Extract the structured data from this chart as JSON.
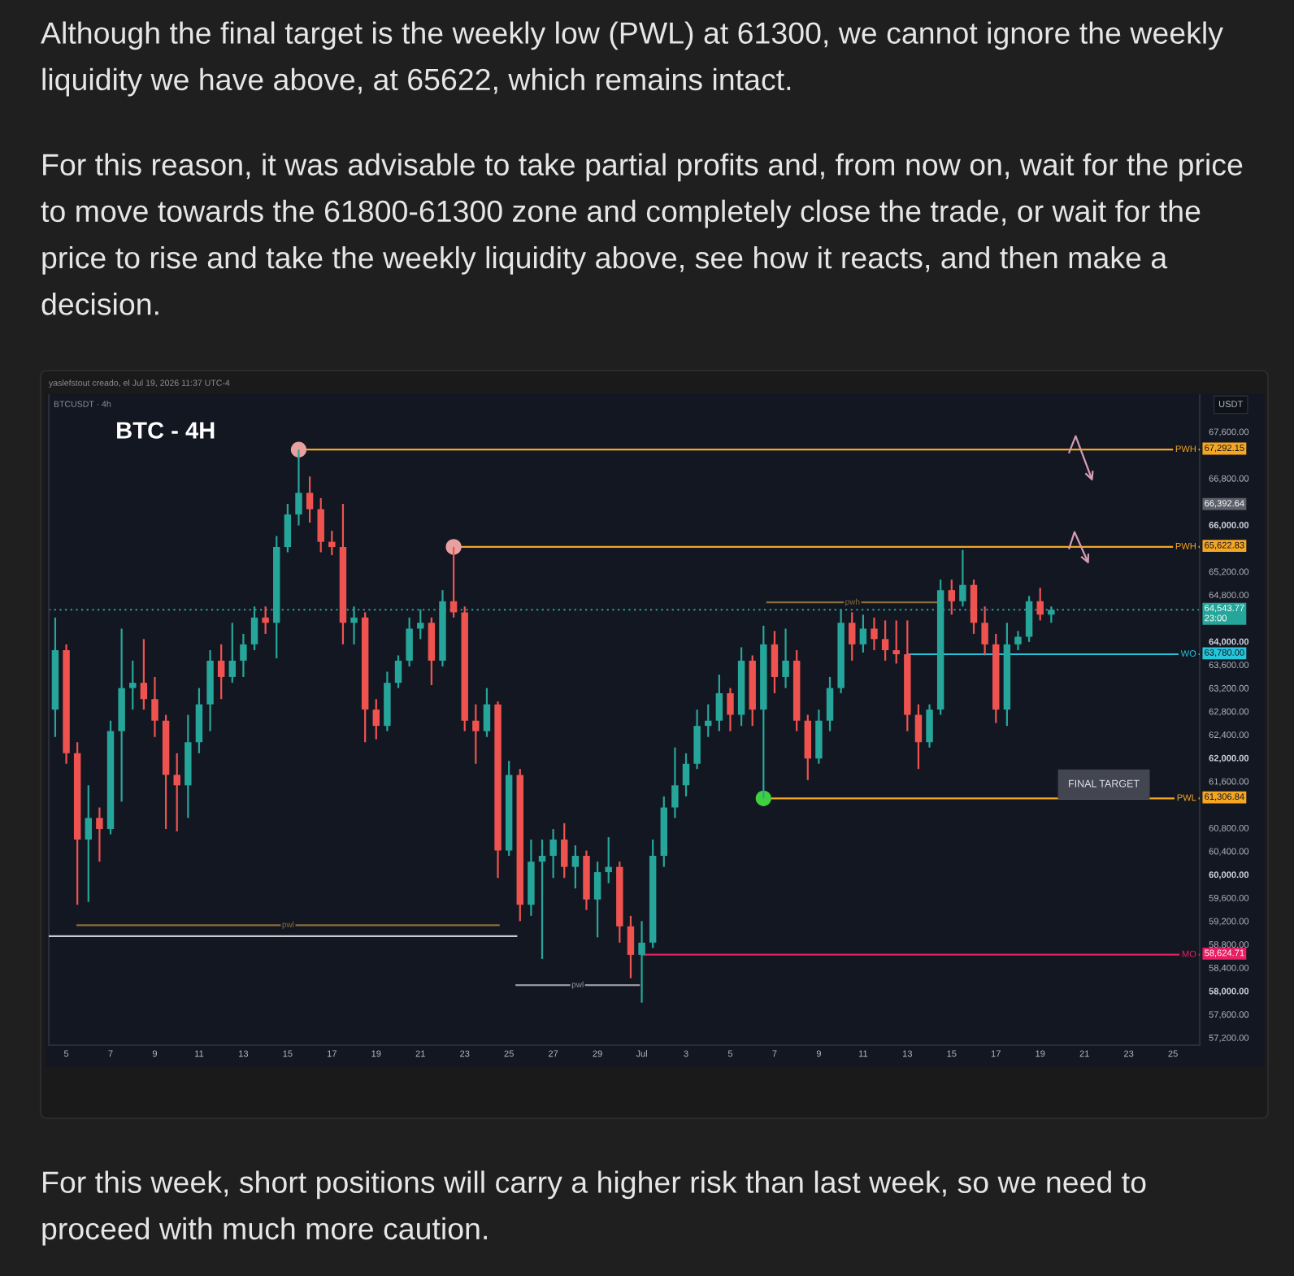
{
  "chart_data": {
    "type": "candlestick",
    "title": "BTC - 4H",
    "subtitle": "BTCUSDT · 4h",
    "ylabel": "USDT",
    "legend": "right",
    "x": [
      "2026-06-04T12:00",
      "2026-06-05T00:00",
      "2026-06-05T12:00",
      "2026-06-06T00:00",
      "2026-06-06T12:00",
      "2026-06-07T00:00",
      "2026-06-07T12:00",
      "2026-06-08T00:00",
      "2026-06-08T12:00",
      "2026-06-09T00:00",
      "2026-06-09T12:00",
      "2026-06-10T00:00",
      "2026-06-10T12:00",
      "2026-06-11T00:00",
      "2026-06-11T12:00",
      "2026-06-12T00:00",
      "2026-06-12T12:00",
      "2026-06-13T00:00",
      "2026-06-13T12:00",
      "2026-06-14T00:00",
      "2026-06-14T12:00",
      "2026-06-15T00:00",
      "2026-06-15T12:00",
      "2026-06-16T00:00",
      "2026-06-16T12:00",
      "2026-06-17T00:00",
      "2026-06-17T12:00",
      "2026-06-18T00:00",
      "2026-06-18T12:00",
      "2026-06-19T00:00",
      "2026-06-19T12:00",
      "2026-06-20T00:00",
      "2026-06-20T12:00",
      "2026-06-21T00:00",
      "2026-06-21T12:00",
      "2026-06-22T00:00",
      "2026-06-22T12:00",
      "2026-06-23T00:00",
      "2026-06-23T12:00",
      "2026-06-24T00:00",
      "2026-06-24T12:00",
      "2026-06-25T00:00",
      "2026-06-25T12:00",
      "2026-06-26T00:00",
      "2026-06-26T12:00",
      "2026-06-27T00:00",
      "2026-06-27T12:00",
      "2026-06-28T00:00",
      "2026-06-28T12:00",
      "2026-06-29T00:00",
      "2026-06-29T12:00",
      "2026-06-30T00:00",
      "2026-06-30T12:00",
      "2026-07-01T00:00",
      "2026-07-01T12:00",
      "2026-07-02T00:00",
      "2026-07-02T12:00",
      "2026-07-03T00:00",
      "2026-07-03T12:00",
      "2026-07-04T00:00",
      "2026-07-04T12:00",
      "2026-07-05T00:00",
      "2026-07-05T12:00",
      "2026-07-06T00:00",
      "2026-07-06T12:00",
      "2026-07-07T00:00",
      "2026-07-07T12:00",
      "2026-07-08T00:00",
      "2026-07-08T12:00",
      "2026-07-09T00:00",
      "2026-07-09T12:00",
      "2026-07-10T00:00",
      "2026-07-10T12:00",
      "2026-07-11T00:00",
      "2026-07-11T12:00",
      "2026-07-12T00:00",
      "2026-07-12T12:00",
      "2026-07-13T00:00",
      "2026-07-13T12:00",
      "2026-07-14T00:00",
      "2026-07-14T12:00",
      "2026-07-15T00:00",
      "2026-07-15T12:00",
      "2026-07-16T00:00",
      "2026-07-16T12:00",
      "2026-07-17T00:00",
      "2026-07-17T12:00",
      "2026-07-18T00:00",
      "2026-07-18T12:00",
      "2026-07-19T00:00",
      "2026-07-19T12:00"
    ],
    "ohlc": [
      [
        62830,
        64410,
        62360,
        63850
      ],
      [
        63850,
        63950,
        61900,
        62080
      ],
      [
        62080,
        62270,
        59480,
        60600
      ],
      [
        60600,
        61530,
        59530,
        60970
      ],
      [
        60970,
        61150,
        60220,
        60780
      ],
      [
        60780,
        62640,
        60690,
        62460
      ],
      [
        62460,
        64220,
        61250,
        63200
      ],
      [
        63200,
        63670,
        62830,
        63290
      ],
      [
        63290,
        64040,
        62830,
        63010
      ],
      [
        63010,
        63390,
        62360,
        62640
      ],
      [
        62640,
        62740,
        60780,
        61710
      ],
      [
        61710,
        62080,
        60740,
        61530
      ],
      [
        61530,
        62740,
        60970,
        62270
      ],
      [
        62270,
        63200,
        62080,
        62920
      ],
      [
        62920,
        63850,
        62460,
        63670
      ],
      [
        63670,
        63950,
        63010,
        63390
      ],
      [
        63390,
        64320,
        63290,
        63670
      ],
      [
        63670,
        64130,
        63390,
        63950
      ],
      [
        63950,
        64600,
        63850,
        64410
      ],
      [
        64410,
        64600,
        64130,
        64320
      ],
      [
        64320,
        65810,
        63710,
        65620
      ],
      [
        65620,
        66360,
        65530,
        66180
      ],
      [
        66180,
        67292.15,
        65990,
        66550
      ],
      [
        66550,
        66830,
        66040,
        66270
      ],
      [
        66270,
        66460,
        65530,
        65710
      ],
      [
        65710,
        65900,
        65480,
        65620
      ],
      [
        65620,
        66360,
        63950,
        64320
      ],
      [
        64320,
        64600,
        63950,
        64410
      ],
      [
        64410,
        64500,
        62270,
        62830
      ],
      [
        62830,
        63010,
        62320,
        62550
      ],
      [
        62550,
        63480,
        62460,
        63290
      ],
      [
        63290,
        63760,
        63200,
        63670
      ],
      [
        63670,
        64410,
        63570,
        64220
      ],
      [
        64220,
        64550,
        64040,
        64320
      ],
      [
        64320,
        64410,
        63250,
        63670
      ],
      [
        63670,
        64880,
        63570,
        64690
      ],
      [
        64690,
        65622.83,
        64410,
        64500
      ],
      [
        64500,
        64600,
        62460,
        62640
      ],
      [
        62640,
        62920,
        61900,
        62460
      ],
      [
        62460,
        63200,
        62360,
        62920
      ],
      [
        62920,
        62970,
        59940,
        60410
      ],
      [
        60410,
        61950,
        60320,
        61710
      ],
      [
        61710,
        61810,
        59200,
        59480
      ],
      [
        59480,
        60600,
        59290,
        60220
      ],
      [
        60220,
        60600,
        58550,
        60320
      ],
      [
        60320,
        60780,
        59940,
        60600
      ],
      [
        60600,
        60880,
        59940,
        60130
      ],
      [
        60130,
        60500,
        59760,
        60320
      ],
      [
        60320,
        60410,
        59390,
        59570
      ],
      [
        59570,
        60220,
        58920,
        60040
      ],
      [
        60040,
        60640,
        59850,
        60130
      ],
      [
        60130,
        60220,
        58830,
        59110
      ],
      [
        59110,
        59290,
        58220,
        58620
      ],
      [
        58620,
        59200,
        57800,
        58830
      ],
      [
        58830,
        60600,
        58740,
        60320
      ],
      [
        60320,
        61340,
        60130,
        61150
      ],
      [
        61150,
        62180,
        60970,
        61530
      ],
      [
        61530,
        62080,
        61340,
        61900
      ],
      [
        61900,
        62830,
        61810,
        62550
      ],
      [
        62550,
        62920,
        62360,
        62640
      ],
      [
        62640,
        63430,
        62460,
        63110
      ],
      [
        63110,
        63200,
        62460,
        62740
      ],
      [
        62740,
        63900,
        62550,
        63670
      ],
      [
        63670,
        63760,
        62550,
        62830
      ],
      [
        62830,
        64270,
        61306.84,
        63950
      ],
      [
        63950,
        64180,
        63110,
        63390
      ],
      [
        63390,
        64220,
        63200,
        63670
      ],
      [
        63670,
        63850,
        62460,
        62640
      ],
      [
        62640,
        62740,
        61620,
        61990
      ],
      [
        61990,
        62830,
        61900,
        62640
      ],
      [
        62640,
        63390,
        62460,
        63200
      ],
      [
        63200,
        64550,
        63110,
        64320
      ],
      [
        64320,
        64500,
        63670,
        63950
      ],
      [
        63950,
        64460,
        63810,
        64220
      ],
      [
        64220,
        64410,
        63850,
        64040
      ],
      [
        64040,
        64360,
        63670,
        63850
      ],
      [
        63850,
        64360,
        63620,
        63780
      ],
      [
        63780,
        64360,
        62460,
        62740
      ],
      [
        62740,
        62920,
        61810,
        62270
      ],
      [
        62270,
        62920,
        62180,
        62830
      ],
      [
        62830,
        65060,
        62740,
        64880
      ],
      [
        64880,
        65060,
        64460,
        64690
      ],
      [
        64690,
        65570,
        64600,
        64970
      ],
      [
        64970,
        65060,
        64130,
        64320
      ],
      [
        64320,
        64600,
        63760,
        63950
      ],
      [
        63950,
        64130,
        62600,
        62830
      ],
      [
        62830,
        64320,
        62550,
        63950
      ],
      [
        63950,
        64180,
        63850,
        64080
      ],
      [
        64080,
        64780,
        63990,
        64690
      ],
      [
        64690,
        64920,
        64360,
        64460
      ],
      [
        64460,
        64600,
        64320,
        64543.77
      ]
    ],
    "colors": [
      "#26a69a",
      "#ef5350",
      "#ef5350",
      "#26a69a",
      "#ef5350",
      "#26a69a",
      "#26a69a",
      "#26a69a",
      "#ef5350",
      "#ef5350",
      "#ef5350",
      "#ef5350",
      "#26a69a",
      "#26a69a",
      "#26a69a",
      "#ef5350",
      "#26a69a",
      "#26a69a",
      "#26a69a",
      "#ef5350",
      "#26a69a",
      "#26a69a",
      "#26a69a",
      "#ef5350",
      "#ef5350",
      "#ef5350",
      "#ef5350",
      "#26a69a",
      "#ef5350",
      "#ef5350",
      "#26a69a",
      "#26a69a",
      "#26a69a",
      "#26a69a",
      "#ef5350",
      "#26a69a",
      "#ef5350",
      "#ef5350",
      "#ef5350",
      "#26a69a",
      "#ef5350",
      "#26a69a",
      "#ef5350",
      "#26a69a",
      "#26a69a",
      "#26a69a",
      "#ef5350",
      "#26a69a",
      "#ef5350",
      "#26a69a",
      "#26a69a",
      "#ef5350",
      "#ef5350",
      "#26a69a",
      "#26a69a",
      "#26a69a",
      "#26a69a",
      "#26a69a",
      "#26a69a",
      "#26a69a",
      "#26a69a",
      "#ef5350",
      "#26a69a",
      "#ef5350",
      "#26a69a",
      "#ef5350",
      "#26a69a",
      "#ef5350",
      "#ef5350",
      "#26a69a",
      "#26a69a",
      "#26a69a",
      "#ef5350",
      "#26a69a",
      "#ef5350",
      "#ef5350",
      "#ef5350",
      "#ef5350",
      "#ef5350",
      "#26a69a",
      "#26a69a",
      "#ef5350",
      "#26a69a",
      "#ef5350",
      "#ef5350",
      "#ef5350",
      "#26a69a",
      "#26a69a",
      "#26a69a",
      "#ef5350",
      "#26a69a"
    ],
    "series": [
      {
        "type": "line",
        "name": "PWH",
        "color": "#f5a623",
        "x": [
          "2026-06-15T12:00",
          "2026-07-26T05:00"
        ],
        "values": [
          67292.15,
          67292.15
        ],
        "value_labels": [
          null,
          "67,292.15"
        ]
      },
      {
        "type": "line",
        "name": "PWH",
        "color": "#f5a623",
        "x": [
          "2026-06-22T12:00",
          "2026-07-26T05:00"
        ],
        "values": [
          65622.83,
          65622.83
        ],
        "value_labels": [
          null,
          "65,622.83"
        ]
      },
      {
        "type": "line",
        "name": "WO",
        "color": "#26c6da",
        "x": [
          "2026-07-13T00:00",
          "2026-07-26T05:00"
        ],
        "values": [
          63780,
          63780
        ],
        "value_labels": [
          null,
          "63,780.00"
        ]
      },
      {
        "type": "line",
        "name": "PWL",
        "color": "#f5a623",
        "x": [
          "2026-07-06T12:00",
          "2026-07-26T05:00"
        ],
        "values": [
          61306.84,
          61306.84
        ],
        "value_labels": [
          null,
          "61,306.84"
        ]
      },
      {
        "type": "line",
        "name": "MO",
        "color": "#e91e63",
        "x": [
          "2026-07-01T00:00",
          "2026-07-26T05:00"
        ],
        "values": [
          58624.71,
          58624.71
        ],
        "value_labels": [
          null,
          "58,624.71"
        ]
      },
      {
        "type": "line",
        "name": "pwh",
        "color": "#8a6d3b",
        "x": [
          "2026-07-06T16:00",
          "2026-07-14T09:00"
        ],
        "values": [
          64670,
          64670
        ]
      },
      {
        "type": "line",
        "name": "pwl",
        "color": "#8a6d3b",
        "x": [
          "2026-06-05T12:00",
          "2026-06-24T13:00"
        ],
        "values": [
          59130,
          59130
        ]
      },
      {
        "type": "line",
        "color": "#c8cbd2",
        "x": [
          "2026-06-04T05:00",
          "2026-06-25T08:00"
        ],
        "values": [
          58940,
          58940
        ]
      },
      {
        "type": "line",
        "name": "pwl",
        "color": "#9598a1",
        "x": [
          "2026-06-25T08:00",
          "2026-06-30T21:00"
        ],
        "values": [
          58100,
          58100
        ]
      },
      {
        "type": "scatter",
        "color": "#e8a0a0",
        "marker": "circle",
        "x": [
          "2026-06-15T12:00",
          "2026-06-22T12:00"
        ],
        "values": [
          67292.15,
          65622.83
        ]
      },
      {
        "type": "scatter",
        "color": "#3fcf3f",
        "marker": "circle",
        "x": [
          "2026-07-06T12:00"
        ],
        "values": [
          61306.84
        ]
      }
    ],
    "ref_lines": [
      {
        "axis": "y",
        "value": 64543.77,
        "label": "64,543.77\n23:00",
        "color": "#26a69a",
        "line_style": "dotted"
      }
    ],
    "annotations": [
      "Although the final target is the weekly low (PWL) at 61300, we cannot ignore the weekly liquidity we have above, at 65622, which remains intact.",
      "For this reason, it was advisable to take partial profits and, from now on, wait for the price to move towards the 61800-61300 zone and completely close the trade, or wait for the price to rise and take the weekly liquidity above, see how it reacts, and then make a decision.",
      "yaslefstout creado, el Jul 19, 2026 11:37 UTC-4",
      "66,392.64",
      "FINAL TARGET",
      "For this week, short positions will carry a higher risk than last week, so we need to proceed with much more caution."
    ],
    "xlim": [
      "2026-06-04T05:00",
      "2026-07-26T05:00"
    ],
    "ylim": [
      57070,
      68230
    ],
    "xticks": [
      {
        "value": "2026-06-05",
        "label": "5"
      },
      {
        "value": "2026-06-07",
        "label": "7"
      },
      {
        "value": "2026-06-09",
        "label": "9"
      },
      {
        "value": "2026-06-11",
        "label": "11"
      },
      {
        "value": "2026-06-13",
        "label": "13"
      },
      {
        "value": "2026-06-15",
        "label": "15"
      },
      {
        "value": "2026-06-17",
        "label": "17"
      },
      {
        "value": "2026-06-19",
        "label": "19"
      },
      {
        "value": "2026-06-21",
        "label": "21"
      },
      {
        "value": "2026-06-23",
        "label": "23"
      },
      {
        "value": "2026-06-25",
        "label": "25"
      },
      {
        "value": "2026-06-27",
        "label": "27"
      },
      {
        "value": "2026-06-29",
        "label": "29"
      },
      {
        "value": "2026-07-01",
        "label": "Jul"
      },
      {
        "value": "2026-07-03",
        "label": "3"
      },
      {
        "value": "2026-07-05",
        "label": "5"
      },
      {
        "value": "2026-07-07",
        "label": "7"
      },
      {
        "value": "2026-07-09",
        "label": "9"
      },
      {
        "value": "2026-07-11",
        "label": "11"
      },
      {
        "value": "2026-07-13",
        "label": "13"
      },
      {
        "value": "2026-07-15",
        "label": "15"
      },
      {
        "value": "2026-07-17",
        "label": "17"
      },
      {
        "value": "2026-07-19",
        "label": "19"
      },
      {
        "value": "2026-07-21",
        "label": "21"
      },
      {
        "value": "2026-07-23",
        "label": "23"
      },
      {
        "value": "2026-07-25",
        "label": "25"
      }
    ],
    "yticks": [
      {
        "value": 67600,
        "label": "67,600.00"
      },
      {
        "value": 66800,
        "label": "66,800.00"
      },
      {
        "value": 66000,
        "label": "66,000.00"
      },
      {
        "value": 65200,
        "label": "65,200.00"
      },
      {
        "value": 64800,
        "label": "64,800.00"
      },
      {
        "value": 64000,
        "label": "64,000.00"
      },
      {
        "value": 63600,
        "label": "63,600.00"
      },
      {
        "value": 63200,
        "label": "63,200.00"
      },
      {
        "value": 62800,
        "label": "62,800.00"
      },
      {
        "value": 62400,
        "label": "62,400.00"
      },
      {
        "value": 62000,
        "label": "62,000.00"
      },
      {
        "value": 61600,
        "label": "61,600.00"
      },
      {
        "value": 60800,
        "label": "60,800.00"
      },
      {
        "value": 60400,
        "label": "60,400.00"
      },
      {
        "value": 60000,
        "label": "60,000.00"
      },
      {
        "value": 59600,
        "label": "59,600.00"
      },
      {
        "value": 59200,
        "label": "59,200.00"
      },
      {
        "value": 58800,
        "label": "58,800.00"
      },
      {
        "value": 58400,
        "label": "58,400.00"
      },
      {
        "value": 58000,
        "label": "58,000.00"
      },
      {
        "value": 57600,
        "label": "57,600.00"
      },
      {
        "value": 57200,
        "label": "57,200.00"
      }
    ]
  }
}
